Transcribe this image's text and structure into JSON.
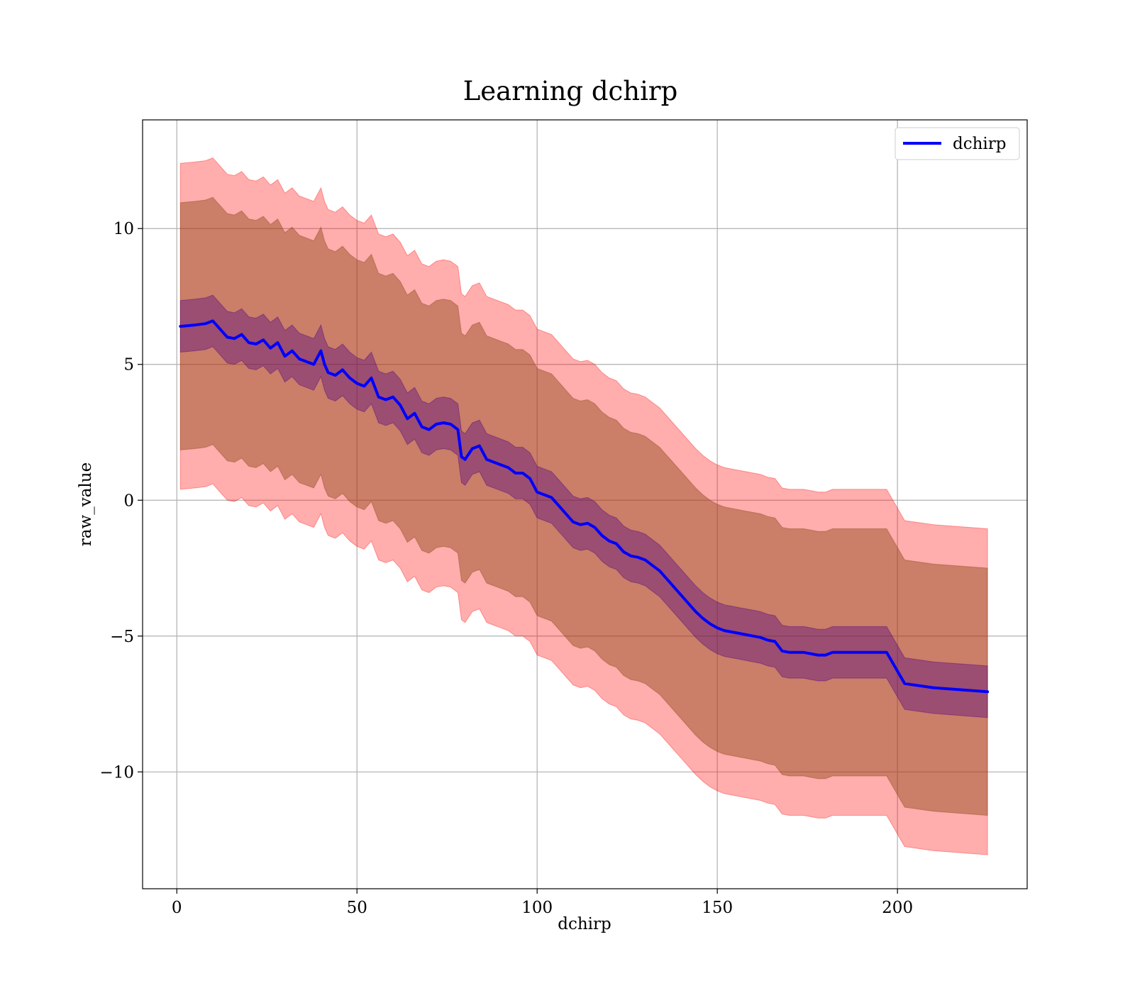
{
  "chart_data": {
    "type": "line",
    "title": "Learning dchirp",
    "xlabel": "dchirp",
    "ylabel": "raw_value",
    "xlim": [
      -9.5,
      236
    ],
    "ylim": [
      -14.3,
      14
    ],
    "xticks": [
      0,
      50,
      100,
      150,
      200
    ],
    "yticks": [
      -10,
      -5,
      0,
      5,
      10
    ],
    "xtick_labels": [
      "0",
      "50",
      "100",
      "150",
      "200"
    ],
    "ytick_labels": [
      "−10",
      "−5",
      "0",
      "5",
      "10"
    ],
    "grid": true,
    "legend_position": "top-right",
    "colors": {
      "line": "#0000ff",
      "outer_band": "#ff0000",
      "middle_band": "#8b4513",
      "inner_band": "#4b0082",
      "grid": "#b0b0b0"
    },
    "series": [
      {
        "name": "dchirp",
        "x": [
          1,
          5,
          8,
          10,
          12,
          14,
          16,
          18,
          20,
          22,
          24,
          26,
          28,
          30,
          32,
          34,
          36,
          38,
          40,
          41,
          42,
          44,
          46,
          48,
          50,
          52,
          54,
          56,
          58,
          60,
          62,
          64,
          66,
          68,
          70,
          72,
          74,
          76,
          78,
          79,
          80,
          82,
          84,
          86,
          88,
          90,
          92,
          94,
          96,
          98,
          100,
          102,
          104,
          106,
          108,
          110,
          112,
          114,
          116,
          118,
          120,
          122,
          124,
          126,
          128,
          130,
          132,
          134,
          136,
          138,
          140,
          142,
          144,
          146,
          148,
          150,
          152,
          154,
          156,
          158,
          160,
          162,
          164,
          166,
          168,
          170,
          172,
          174,
          176,
          178,
          180,
          182,
          190,
          197,
          202,
          210,
          225
        ],
        "y": [
          6.4,
          6.45,
          6.5,
          6.6,
          6.3,
          6.0,
          5.95,
          6.1,
          5.8,
          5.75,
          5.9,
          5.6,
          5.8,
          5.3,
          5.5,
          5.2,
          5.1,
          5.0,
          5.5,
          5.0,
          4.7,
          4.6,
          4.8,
          4.5,
          4.3,
          4.2,
          4.5,
          3.8,
          3.7,
          3.8,
          3.5,
          3.0,
          3.2,
          2.7,
          2.6,
          2.8,
          2.85,
          2.8,
          2.6,
          1.6,
          1.5,
          1.9,
          2.0,
          1.5,
          1.4,
          1.3,
          1.2,
          1.0,
          1.0,
          0.8,
          0.3,
          0.2,
          0.1,
          -0.2,
          -0.5,
          -0.8,
          -0.9,
          -0.85,
          -1.0,
          -1.3,
          -1.5,
          -1.6,
          -1.9,
          -2.05,
          -2.1,
          -2.2,
          -2.4,
          -2.6,
          -2.9,
          -3.2,
          -3.5,
          -3.8,
          -4.1,
          -4.35,
          -4.55,
          -4.7,
          -4.8,
          -4.85,
          -4.9,
          -4.95,
          -5.0,
          -5.05,
          -5.15,
          -5.2,
          -5.55,
          -5.6,
          -5.6,
          -5.6,
          -5.65,
          -5.7,
          -5.7,
          -5.6,
          -5.6,
          -5.6,
          -6.75,
          -6.9,
          -7.05
        ],
        "band_inner_halfwidth": 0.95,
        "band_middle_halfwidth": 4.55,
        "band_outer_halfwidth": 6.0
      }
    ]
  }
}
